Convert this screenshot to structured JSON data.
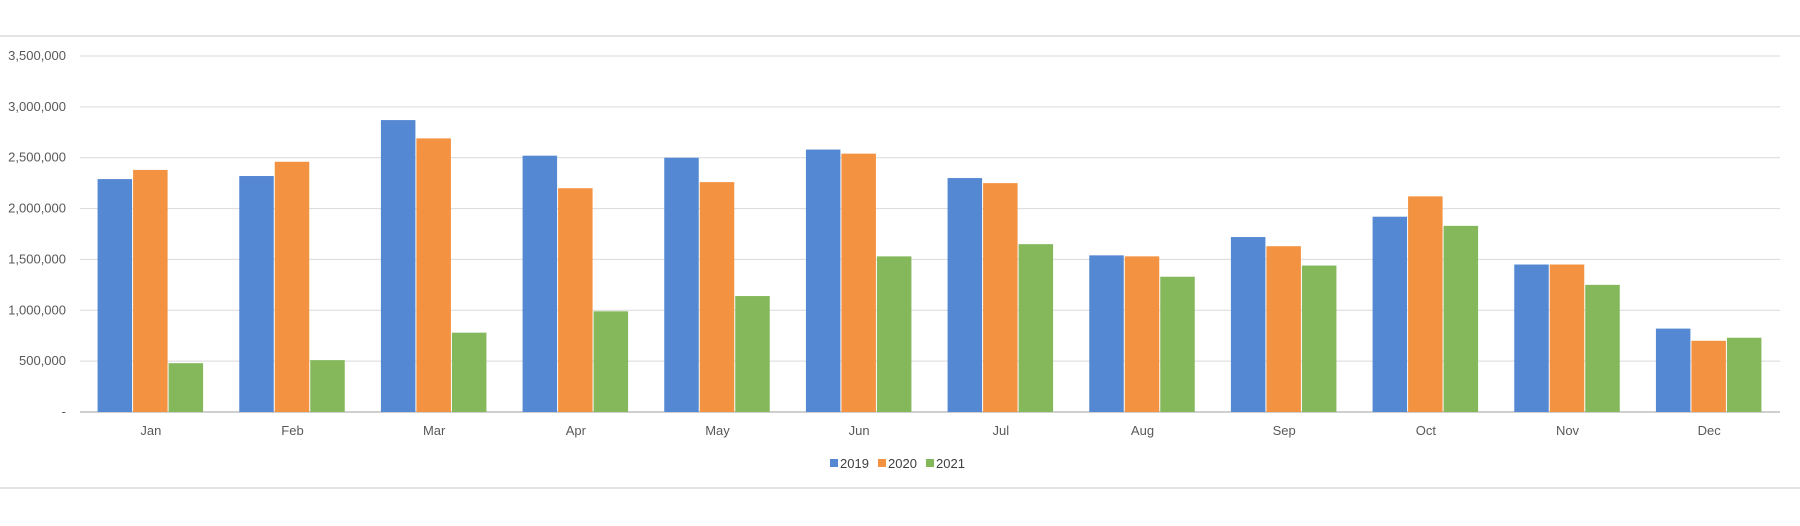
{
  "chart_data": {
    "type": "bar",
    "title": "",
    "xlabel": "",
    "ylabel": "",
    "categories": [
      "Jan",
      "Feb",
      "Mar",
      "Apr",
      "May",
      "Jun",
      "Jul",
      "Aug",
      "Sep",
      "Oct",
      "Nov",
      "Dec"
    ],
    "series": [
      {
        "name": "2019",
        "color": "#5588d3",
        "values": [
          2290000,
          2320000,
          2870000,
          2520000,
          2500000,
          2580000,
          2300000,
          1540000,
          1720000,
          1920000,
          1450000,
          820000
        ]
      },
      {
        "name": "2020",
        "color": "#f39240",
        "values": [
          2380000,
          2460000,
          2690000,
          2200000,
          2260000,
          2540000,
          2250000,
          1530000,
          1630000,
          2120000,
          1450000,
          700000
        ]
      },
      {
        "name": "2021",
        "color": "#84b85b",
        "values": [
          480000,
          510000,
          780000,
          990000,
          1140000,
          1530000,
          1650000,
          1330000,
          1440000,
          1830000,
          1250000,
          730000
        ]
      }
    ],
    "ylim": [
      0,
      3500000
    ],
    "yticks": [
      0,
      500000,
      1000000,
      1500000,
      2000000,
      2500000,
      3000000,
      3500000
    ],
    "ytick_labels": [
      "-",
      "500,000",
      "1,000,000",
      "1,500,000",
      "2,000,000",
      "2,500,000",
      "3,000,000",
      "3,500,000"
    ],
    "grid": true,
    "legend_position": "bottom"
  }
}
